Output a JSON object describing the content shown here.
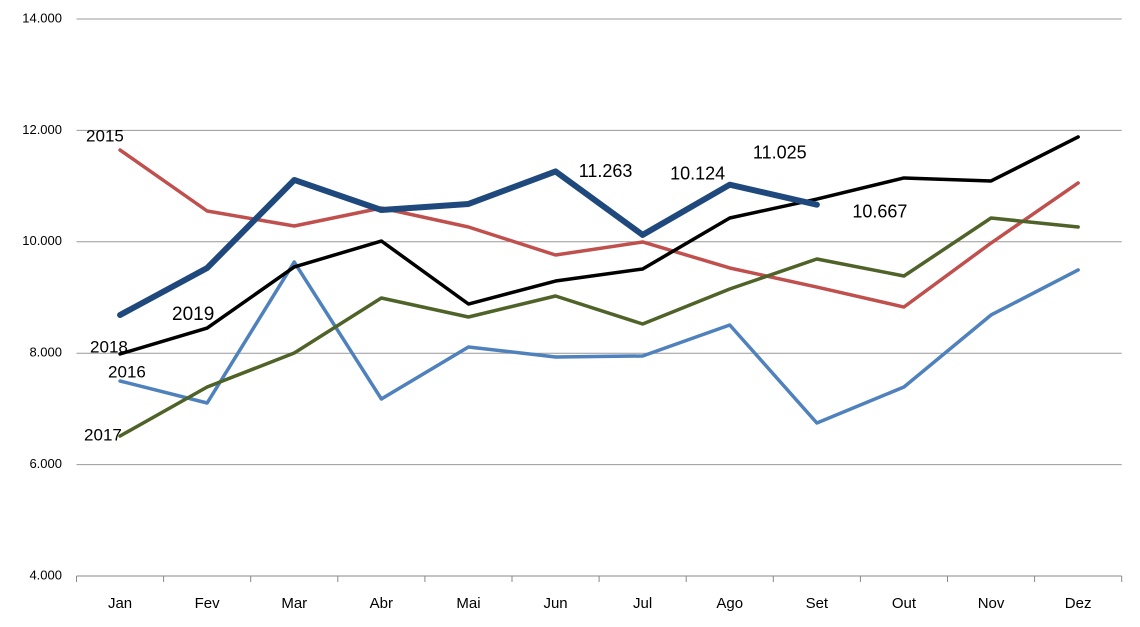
{
  "chart_data": {
    "type": "line",
    "categories": [
      "Jan",
      "Fev",
      "Mar",
      "Abr",
      "Mai",
      "Jun",
      "Jul",
      "Ago",
      "Set",
      "Out",
      "Nov",
      "Dez"
    ],
    "series": [
      {
        "name": "2015",
        "color": "#c0504d",
        "values": [
          11648,
          10553,
          10284,
          10607,
          10266,
          9763,
          9997,
          9530,
          9188,
          8829,
          9978,
          11056
        ]
      },
      {
        "name": "2016",
        "color": "#4f81bd",
        "values": [
          7501,
          7106,
          9637,
          7178,
          8111,
          7932,
          7950,
          8506,
          6747,
          7393,
          8686,
          9494
        ]
      },
      {
        "name": "2017",
        "color": "#4f6228",
        "values": [
          6513,
          7393,
          8004,
          8991,
          8650,
          9027,
          8524,
          9153,
          9691,
          9386,
          10427,
          10266
        ]
      },
      {
        "name": "2018",
        "color": "#000000",
        "values": [
          7986,
          8452,
          9548,
          10014,
          8883,
          9296,
          9512,
          10427,
          10768,
          11146,
          11092,
          11882
        ]
      },
      {
        "name": "2019",
        "color": "#1f497d",
        "values": [
          8686,
          9530,
          11110,
          10571,
          10679,
          11263,
          10124,
          11025,
          10667,
          null,
          null,
          null
        ],
        "value_labels": [
          null,
          null,
          null,
          null,
          null,
          "11.263",
          "10.124",
          "11.025",
          "10.667",
          null,
          null,
          null
        ]
      }
    ],
    "ylim": [
      4000,
      14000
    ],
    "yticks": [
      {
        "value": 4000,
        "label": "4.000"
      },
      {
        "value": 6000,
        "label": "6.000"
      },
      {
        "value": 8000,
        "label": "8.000"
      },
      {
        "value": 10000,
        "label": "10.000"
      },
      {
        "value": 12000,
        "label": "12.000"
      },
      {
        "value": 14000,
        "label": "14.000"
      }
    ],
    "grid": true
  }
}
